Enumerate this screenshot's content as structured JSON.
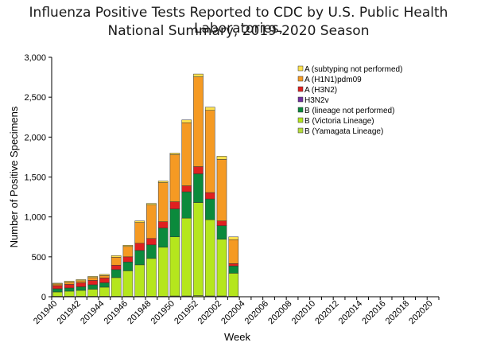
{
  "chart_data": {
    "type": "bar",
    "stacked": true,
    "title_line1": "Influenza Positive Tests Reported to CDC by U.S. Public Health Laboratories,",
    "title_line2": "National Summary, 2019-2020 Season",
    "xlabel": "Week",
    "ylabel": "Number of Positive Specimens",
    "ylim": [
      0,
      3000
    ],
    "yticks": [
      "0",
      "500",
      "1,000",
      "1,500",
      "2,000",
      "2,500",
      "3,000"
    ],
    "ytick_values": [
      0,
      500,
      1000,
      1500,
      2000,
      2500,
      3000
    ],
    "categories": [
      "201940",
      "201941",
      "201942",
      "201943",
      "201944",
      "201945",
      "201946",
      "201947",
      "201948",
      "201949",
      "201950",
      "201951",
      "201952",
      "202001",
      "202002",
      "202003",
      "202004",
      "202005",
      "202006",
      "202007",
      "202008",
      "202009",
      "202010",
      "202011",
      "202012",
      "202013",
      "202014",
      "202015",
      "202016",
      "202017",
      "202018",
      "202019",
      "202020"
    ],
    "tick_labels": [
      "201940",
      "201942",
      "201944",
      "201946",
      "201948",
      "201950",
      "201952",
      "202002",
      "202004",
      "202006",
      "202008",
      "202010",
      "202012",
      "202014",
      "202016",
      "202018",
      "202020"
    ],
    "legend_position": "top-right",
    "series": [
      {
        "name": "B (Yamagata Lineage)",
        "color": "#b5dc3c",
        "values": [
          5,
          5,
          5,
          5,
          5,
          5,
          5,
          5,
          5,
          5,
          10,
          10,
          15,
          10,
          10,
          5,
          0,
          0,
          0,
          0,
          0,
          0,
          0,
          0,
          0,
          0,
          0,
          0,
          0,
          0,
          0,
          0,
          0
        ]
      },
      {
        "name": "B (Victoria Lineage)",
        "color": "#b5e61d",
        "values": [
          55,
          65,
          75,
          90,
          115,
          235,
          320,
          395,
          475,
          615,
          740,
          975,
          1165,
          955,
          710,
          290,
          0,
          0,
          0,
          0,
          0,
          0,
          0,
          0,
          0,
          0,
          0,
          0,
          0,
          0,
          0,
          0,
          0
        ]
      },
      {
        "name": "B (lineage not performed)",
        "color": "#0b8a3c",
        "values": [
          40,
          40,
          45,
          55,
          55,
          100,
          110,
          180,
          170,
          240,
          350,
          330,
          360,
          260,
          170,
          90,
          0,
          0,
          0,
          0,
          0,
          0,
          0,
          0,
          0,
          0,
          0,
          0,
          0,
          0,
          0,
          0,
          0
        ]
      },
      {
        "name": "H3N2v",
        "color": "#7030a0",
        "values": [
          0,
          0,
          0,
          0,
          0,
          0,
          0,
          0,
          0,
          0,
          0,
          0,
          0,
          0,
          0,
          0,
          0,
          0,
          0,
          0,
          0,
          0,
          0,
          0,
          0,
          0,
          0,
          0,
          0,
          0,
          0,
          0,
          0
        ]
      },
      {
        "name": "A (H3N2)",
        "color": "#e02020",
        "values": [
          40,
          45,
          50,
          55,
          60,
          55,
          65,
          90,
          80,
          80,
          90,
          75,
          90,
          80,
          60,
          30,
          0,
          0,
          0,
          0,
          0,
          0,
          0,
          0,
          0,
          0,
          0,
          0,
          0,
          0,
          0,
          0,
          0
        ]
      },
      {
        "name": "A (H1N1)pdm09",
        "color": "#f59a23",
        "values": [
          20,
          25,
          25,
          35,
          30,
          100,
          130,
          260,
          420,
          490,
          590,
          790,
          1125,
          1030,
          770,
          300,
          0,
          0,
          0,
          0,
          0,
          0,
          0,
          0,
          0,
          0,
          0,
          0,
          0,
          0,
          0,
          0,
          0
        ]
      },
      {
        "name": "A (subtyping not performed)",
        "color": "#ffe14d",
        "values": [
          10,
          15,
          15,
          15,
          15,
          20,
          15,
          20,
          20,
          20,
          20,
          35,
          35,
          40,
          40,
          35,
          0,
          0,
          0,
          0,
          0,
          0,
          0,
          0,
          0,
          0,
          0,
          0,
          0,
          0,
          0,
          0,
          0
        ]
      }
    ],
    "legend_order": [
      "A (subtyping not performed)",
      "A (H1N1)pdm09",
      "A (H3N2)",
      "H3N2v",
      "B (lineage not performed)",
      "B (Victoria Lineage)",
      "B (Yamagata Lineage)"
    ]
  }
}
